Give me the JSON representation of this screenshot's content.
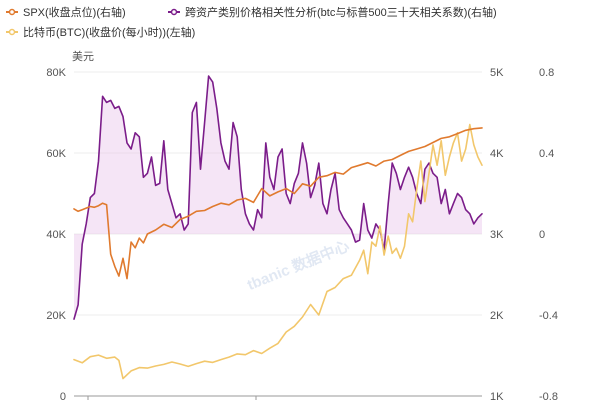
{
  "chart_data": {
    "type": "line",
    "unit_label": "美元",
    "legend": [
      {
        "key": "spx",
        "label": "SPX(收盘点位)(右轴)",
        "color": "#e07a2e"
      },
      {
        "key": "corr",
        "label": "跨资产类别价格相关性分析(btc与标普500三十天相关系数)(右轴)",
        "color": "#7b1d8a"
      },
      {
        "key": "btc",
        "label": "比特币(BTC)(收盘价(每小时))(左轴)",
        "color": "#f2c76b"
      }
    ],
    "axes": {
      "left": {
        "min": 0,
        "max": 80000,
        "ticks": [
          0,
          20000,
          40000,
          60000,
          80000
        ],
        "tick_labels": [
          "0",
          "20K",
          "40K",
          "60K",
          "80K"
        ]
      },
      "middle": {
        "min": 1000,
        "max": 5000,
        "ticks": [
          1000,
          2000,
          3000,
          4000,
          5000
        ],
        "tick_labels": [
          "1K",
          "2K",
          "3K",
          "4K",
          "5K"
        ]
      },
      "right": {
        "min": -0.8,
        "max": 0.8,
        "ticks": [
          -0.8,
          -0.4,
          0,
          0.4,
          0.8
        ],
        "tick_labels": [
          "-0.8",
          "-0.4",
          "0",
          "0.4",
          "0.8"
        ]
      }
    },
    "x_range": [
      0,
      100
    ],
    "series": [
      {
        "key": "btc",
        "axis": "left",
        "x": [
          0,
          2,
          4,
          6,
          8,
          10,
          11,
          12,
          14,
          16,
          18,
          20,
          22,
          24,
          26,
          28,
          30,
          32,
          34,
          36,
          38,
          40,
          42,
          44,
          46,
          48,
          50,
          52,
          54,
          56,
          58,
          60,
          62,
          64,
          66,
          68,
          70,
          71,
          72,
          73,
          74,
          75,
          76,
          77,
          78,
          79,
          80,
          81,
          82,
          83,
          84,
          85,
          86,
          87,
          88,
          89,
          90,
          91,
          92,
          93,
          94,
          95,
          96,
          97,
          98,
          99,
          100
        ],
        "values": [
          9000,
          8200,
          9700,
          10100,
          9300,
          9600,
          8800,
          4300,
          6200,
          7000,
          6900,
          7400,
          7800,
          8400,
          7900,
          7300,
          8000,
          8600,
          8300,
          9000,
          9600,
          10400,
          10200,
          11200,
          10500,
          11800,
          13000,
          15800,
          17200,
          19500,
          22600,
          20000,
          25800,
          26800,
          29000,
          29800,
          33500,
          36000,
          30200,
          38000,
          37000,
          42000,
          34800,
          39500,
          35200,
          36500,
          34000,
          37000,
          45000,
          43000,
          51000,
          58000,
          48000,
          55000,
          62000,
          57000,
          63000,
          54500,
          59000,
          62500,
          65000,
          58000,
          61000,
          67000,
          62000,
          59000,
          57000
        ]
      },
      {
        "key": "spx",
        "axis": "middle",
        "x": [
          0,
          1,
          2,
          3,
          4,
          5,
          6,
          7,
          8,
          9,
          10,
          11,
          12,
          13,
          14,
          15,
          16,
          17,
          18,
          20,
          22,
          24,
          26,
          28,
          30,
          32,
          34,
          36,
          38,
          40,
          42,
          44,
          46,
          48,
          50,
          52,
          54,
          56,
          58,
          60,
          62,
          64,
          66,
          68,
          70,
          72,
          74,
          76,
          78,
          80,
          82,
          84,
          86,
          88,
          90,
          92,
          94,
          96,
          98,
          100
        ],
        "values": [
          3310,
          3280,
          3300,
          3320,
          3340,
          3330,
          3350,
          3380,
          3360,
          2750,
          2600,
          2480,
          2700,
          2450,
          2900,
          2830,
          2950,
          2890,
          3000,
          3050,
          3120,
          3080,
          3180,
          3220,
          3280,
          3290,
          3340,
          3380,
          3360,
          3420,
          3440,
          3390,
          3560,
          3470,
          3520,
          3560,
          3500,
          3620,
          3590,
          3700,
          3720,
          3760,
          3740,
          3820,
          3850,
          3880,
          3840,
          3900,
          3920,
          3970,
          4020,
          4050,
          4080,
          4130,
          4180,
          4200,
          4240,
          4280,
          4300,
          4310
        ]
      },
      {
        "key": "corr",
        "axis": "right",
        "x": [
          0,
          1,
          2,
          3,
          4,
          5,
          6,
          7,
          8,
          9,
          10,
          11,
          12,
          13,
          14,
          15,
          16,
          17,
          18,
          19,
          20,
          21,
          22,
          23,
          24,
          25,
          26,
          27,
          28,
          29,
          30,
          31,
          32,
          33,
          34,
          35,
          36,
          37,
          38,
          39,
          40,
          41,
          42,
          43,
          44,
          45,
          46,
          47,
          48,
          49,
          50,
          51,
          52,
          53,
          54,
          55,
          56,
          57,
          58,
          59,
          60,
          61,
          62,
          63,
          64,
          65,
          66,
          67,
          68,
          69,
          70,
          71,
          72,
          73,
          74,
          75,
          76,
          77,
          78,
          79,
          80,
          81,
          82,
          83,
          84,
          85,
          86,
          87,
          88,
          89,
          90,
          91,
          92,
          93,
          94,
          95,
          96,
          97,
          98,
          99,
          100
        ],
        "values": [
          -0.42,
          -0.35,
          -0.05,
          0.05,
          0.18,
          0.2,
          0.36,
          0.68,
          0.65,
          0.66,
          0.62,
          0.63,
          0.58,
          0.45,
          0.42,
          0.5,
          0.48,
          0.28,
          0.3,
          0.38,
          0.24,
          0.25,
          0.46,
          0.22,
          0.15,
          0.08,
          0.1,
          0.02,
          0.05,
          0.6,
          0.65,
          0.32,
          0.55,
          0.78,
          0.75,
          0.62,
          0.45,
          0.36,
          0.32,
          0.55,
          0.48,
          0.22,
          0.1,
          0.05,
          0.02,
          0.12,
          0.08,
          0.45,
          0.28,
          0.22,
          0.38,
          0.42,
          0.2,
          0.15,
          0.25,
          0.3,
          0.45,
          0.35,
          0.18,
          0.24,
          0.35,
          0.15,
          0.1,
          0.22,
          0.3,
          0.12,
          0.08,
          0.05,
          0.02,
          -0.04,
          -0.03,
          0.15,
          0.02,
          -0.02,
          0.05,
          0.02,
          -0.08,
          0.15,
          0.35,
          0.3,
          0.22,
          0.28,
          0.33,
          0.28,
          0.2,
          0.15,
          0.32,
          0.35,
          0.3,
          0.28,
          0.15,
          0.22,
          0.1,
          0.15,
          0.2,
          0.18,
          0.12,
          0.1,
          0.05,
          0.08,
          0.1
        ]
      }
    ]
  },
  "watermark": "tbanic 数据中心"
}
